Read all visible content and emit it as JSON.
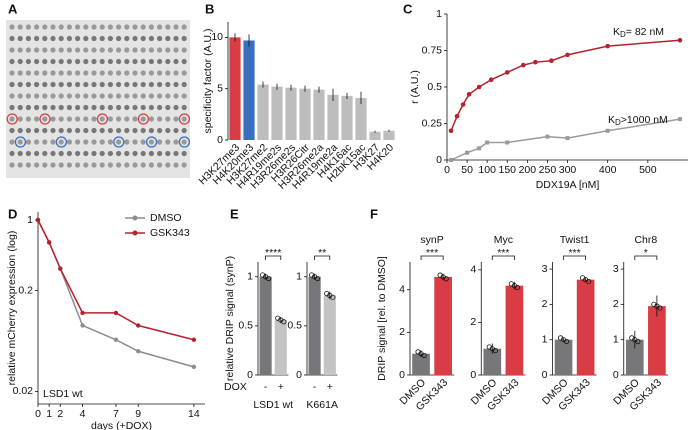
{
  "image_panel": {
    "label": "A"
  },
  "chart_data": [
    {
      "type": "bar",
      "label": "B",
      "ylabel": "specificity factor (A.U.)",
      "categories": [
        "H3K27me3",
        "H4K20me3",
        "H3K27me2",
        "H4R19me2s",
        "H3R26me2s",
        "H3R26Citr",
        "H3R26me2a",
        "H4R19me2a",
        "H4K16ac",
        "H2bK15ac",
        "H3K27",
        "H4K20"
      ],
      "values": [
        10,
        9.7,
        5.4,
        5.2,
        5.1,
        5.0,
        4.9,
        4.4,
        4.3,
        4.1,
        0.8,
        0.9
      ],
      "errors": [
        0.4,
        0.6,
        0.3,
        0.3,
        0.3,
        0.3,
        0.3,
        0.6,
        0.3,
        0.6,
        0.1,
        0.1
      ],
      "colors": [
        "#d93c45",
        "#3a6fc0",
        "#bdbdbd",
        "#bdbdbd",
        "#bdbdbd",
        "#bdbdbd",
        "#bdbdbd",
        "#bdbdbd",
        "#bdbdbd",
        "#bdbdbd",
        "#bdbdbd",
        "#bdbdbd"
      ],
      "ylim": [
        0,
        11.5
      ],
      "yticks": [
        0,
        5,
        10
      ]
    },
    {
      "type": "scatter",
      "label": "C",
      "xlabel": "DDX19A [nM]",
      "ylabel": "r (A.U.)",
      "xlim": [
        0,
        600
      ],
      "xticks": [
        0,
        50,
        100,
        150,
        200,
        250,
        300,
        400,
        500
      ],
      "ylim": [
        0,
        1
      ],
      "yticks": [
        0,
        0.25,
        0.5,
        0.75,
        1
      ],
      "series": [
        {
          "color": "#b5222d",
          "marker": "circle",
          "x": [
            10,
            25,
            40,
            55,
            80,
            110,
            150,
            190,
            220,
            260,
            300,
            400,
            580
          ],
          "values": [
            0.2,
            0.3,
            0.38,
            0.45,
            0.5,
            0.55,
            0.6,
            0.65,
            0.67,
            0.68,
            0.72,
            0.78,
            0.82
          ]
        },
        {
          "color": "#9a9a9a",
          "marker": "square",
          "x": [
            10,
            50,
            80,
            100,
            150,
            250,
            300,
            400,
            580
          ],
          "values": [
            0.0,
            0.05,
            0.08,
            0.12,
            0.12,
            0.16,
            0.15,
            0.2,
            0.28
          ]
        }
      ],
      "annotations": [
        {
          "main": "K",
          "sub": "D",
          "tail": "= 82 nM"
        },
        {
          "main": "K",
          "sub": "D",
          "tail": ">1000 nM"
        }
      ]
    },
    {
      "type": "line",
      "label": "D",
      "xlabel": "days (+DOX)",
      "ylabel": "relative mCherry expression (log)",
      "annotation": "LSD1 wt",
      "log_y": true,
      "legend": "top-right",
      "x": [
        0,
        1,
        2,
        4,
        7,
        9,
        14
      ],
      "xlim": [
        0,
        15
      ],
      "xticks": [
        0,
        1,
        2,
        4,
        7,
        9,
        14
      ],
      "ylim": [
        0.015,
        1.2
      ],
      "yticks": [
        0.02,
        0.2,
        1
      ],
      "series": [
        {
          "name": "DMSO",
          "color": "#8c8c8c",
          "values": [
            1,
            0.6,
            0.33,
            0.09,
            0.065,
            0.05,
            0.035
          ]
        },
        {
          "name": "GSK343",
          "color": "#b5222d",
          "values": [
            1,
            0.6,
            0.33,
            0.12,
            0.12,
            0.09,
            0.065
          ]
        }
      ]
    },
    {
      "type": "bar_panels",
      "label": "E",
      "ylabel": "relative DRIP signal (synP)",
      "category_title": "DOX",
      "group_name_position": "bottom",
      "categories": [
        "-",
        "+"
      ],
      "colors": [
        "#77777b",
        "#c4c4c4"
      ],
      "groups": [
        {
          "name": "LSD1 wt",
          "values": [
            1,
            0.56
          ],
          "errors": [
            0.03,
            0.03
          ],
          "significance": "****",
          "ylim": [
            0,
            1.15
          ],
          "yticks": [
            0,
            0.5,
            1
          ]
        },
        {
          "name": "K661A",
          "values": [
            1,
            0.81
          ],
          "errors": [
            0.03,
            0.04
          ],
          "significance": "**",
          "ylim": [
            0,
            1.15
          ],
          "yticks": [
            0,
            0.5,
            1
          ]
        }
      ]
    },
    {
      "type": "bar_panels",
      "label": "F",
      "ylabel": "DRIP signal [rel. to DMSO]",
      "group_name_position": "top",
      "categories": [
        "DMSO",
        "GSK343"
      ],
      "colors": [
        "#77777b",
        "#d93c45"
      ],
      "groups": [
        {
          "name": "synP",
          "values": [
            1,
            4.6
          ],
          "errors": [
            0.15,
            0.15
          ],
          "significance": "***",
          "ylim": [
            0,
            5.3
          ],
          "yticks": [
            0,
            2,
            4
          ]
        },
        {
          "name": "Myc",
          "values": [
            1,
            3.4
          ],
          "errors": [
            0.2,
            0.15
          ],
          "significance": "***",
          "ylim": [
            0,
            4.3
          ],
          "yticks": [
            0,
            2,
            4
          ]
        },
        {
          "name": "Twist1",
          "values": [
            1,
            2.7
          ],
          "errors": [
            0.04,
            0.04
          ],
          "significance": "***",
          "ylim": [
            0,
            3.2
          ],
          "yticks": [
            0,
            1,
            2,
            3
          ]
        },
        {
          "name": "Chr8",
          "values": [
            1,
            1.95
          ],
          "errors": [
            0.25,
            0.3
          ],
          "significance": "*",
          "ylim": [
            0,
            3.2
          ],
          "yticks": [
            0,
            1,
            2,
            3
          ]
        }
      ]
    }
  ]
}
